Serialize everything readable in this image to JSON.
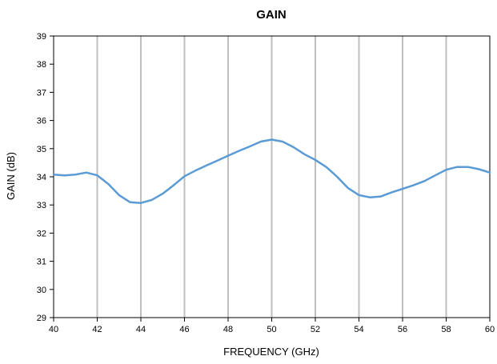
{
  "chart_data": {
    "type": "line",
    "title": "GAIN",
    "xlabel": "FREQUENCY (GHz)",
    "ylabel": "GAIN (dB)",
    "xlim": [
      40,
      60
    ],
    "ylim": [
      29,
      39
    ],
    "x_ticks": [
      40,
      42,
      44,
      46,
      48,
      50,
      52,
      54,
      56,
      58,
      60
    ],
    "y_ticks": [
      29,
      30,
      31,
      32,
      33,
      34,
      35,
      36,
      37,
      38,
      39
    ],
    "grid": "vertical",
    "line_color": "#5b9bd5",
    "grid_color": "#bfbfbf",
    "series": [
      {
        "x": [
          40,
          40.5,
          41,
          41.5,
          42,
          42.5,
          43,
          43.5,
          44,
          44.5,
          45,
          45.5,
          46,
          46.5,
          47,
          47.5,
          48,
          48.5,
          49,
          49.5,
          50,
          50.5,
          51,
          51.5,
          52,
          52.5,
          53,
          53.5,
          54,
          54.5,
          55,
          55.5,
          56,
          56.5,
          57,
          57.5,
          58,
          58.5,
          59,
          59.5,
          60
        ],
        "y": [
          34.08,
          34.05,
          34.08,
          34.15,
          34.05,
          33.75,
          33.35,
          33.1,
          33.07,
          33.18,
          33.4,
          33.7,
          34.02,
          34.22,
          34.4,
          34.57,
          34.75,
          34.92,
          35.08,
          35.25,
          35.32,
          35.25,
          35.05,
          34.8,
          34.6,
          34.35,
          34.0,
          33.6,
          33.35,
          33.27,
          33.3,
          33.45,
          33.57,
          33.7,
          33.85,
          34.05,
          34.25,
          34.35,
          34.35,
          34.27,
          34.15
        ]
      }
    ]
  }
}
